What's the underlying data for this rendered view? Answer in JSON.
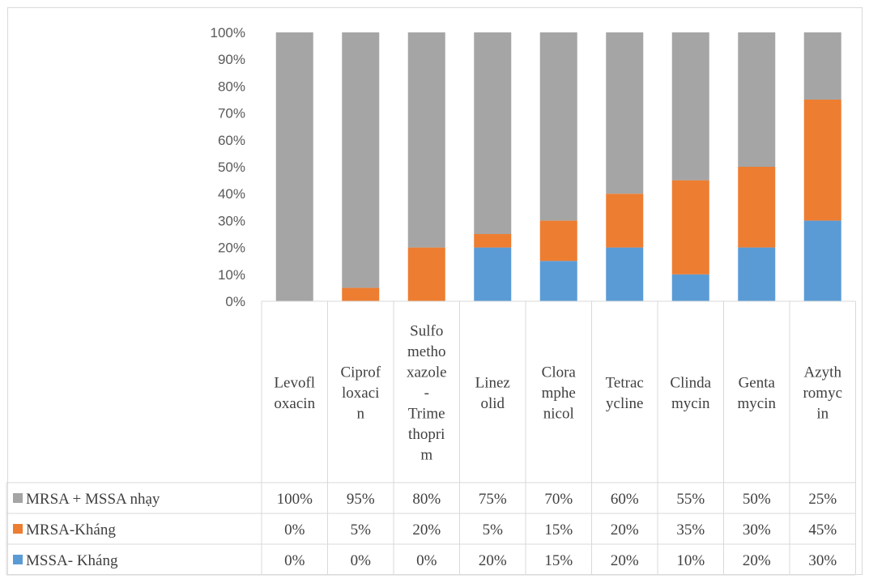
{
  "chart_data": {
    "type": "bar",
    "stacked": true,
    "percent": true,
    "categories": [
      [
        "Levofl",
        "oxacin"
      ],
      [
        "Ciprof",
        "loxaci",
        "n"
      ],
      [
        "Sulfo",
        "metho",
        "xazole",
        "-",
        "Trime",
        "thopri",
        "m"
      ],
      [
        "Linez",
        "olid"
      ],
      [
        "Clora",
        "mphe",
        "nicol"
      ],
      [
        "Tetrac",
        "ycline"
      ],
      [
        "Clinda",
        "mycin"
      ],
      [
        "Genta",
        "mycin"
      ],
      [
        "Azyth",
        "romyc",
        "in"
      ]
    ],
    "ylim": [
      0,
      100
    ],
    "yticks": [
      "0%",
      "10%",
      "20%",
      "30%",
      "40%",
      "50%",
      "60%",
      "70%",
      "80%",
      "90%",
      "100%"
    ],
    "series": [
      {
        "name": "MSSA- Kháng",
        "color": "#5b9bd5",
        "values": [
          0,
          0,
          0,
          20,
          15,
          20,
          10,
          20,
          30
        ],
        "labels": [
          "0%",
          "0%",
          "0%",
          "20%",
          "15%",
          "20%",
          "10%",
          "20%",
          "30%"
        ]
      },
      {
        "name": "MRSA-Kháng",
        "color": "#ed7d31",
        "values": [
          0,
          5,
          20,
          5,
          15,
          20,
          35,
          30,
          45
        ],
        "labels": [
          "0%",
          "5%",
          "20%",
          "5%",
          "15%",
          "20%",
          "35%",
          "30%",
          "45%"
        ]
      },
      {
        "name": "MRSA + MSSA nhạy",
        "color": "#a5a5a5",
        "values": [
          100,
          95,
          80,
          75,
          70,
          60,
          55,
          50,
          25
        ],
        "labels": [
          "100%",
          "95%",
          "80%",
          "75%",
          "70%",
          "60%",
          "55%",
          "50%",
          "25%"
        ]
      }
    ],
    "table_row_order": [
      2,
      1,
      0
    ],
    "grid": false,
    "legend": "data-table"
  }
}
